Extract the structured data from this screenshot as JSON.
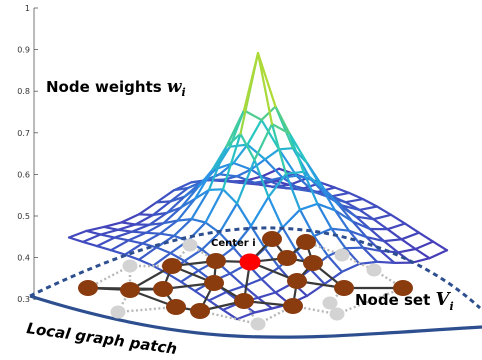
{
  "axis": {
    "ticks": [
      "1",
      "0.9",
      "0.8",
      "0.7",
      "0.6",
      "0.5",
      "0.4",
      "0.3"
    ]
  },
  "labels": {
    "node_weights": "Node weights ",
    "node_weights_symbol": "w",
    "node_weights_sub": "i",
    "node_set": "Node set ",
    "node_set_symbol": "V",
    "node_set_sub": "i",
    "center": "Center i",
    "patch": "Local graph patch"
  },
  "colors": {
    "node_fill": "#8b3c0f",
    "center_fill": "#ff0000",
    "ghost_node": "#d3d3d3",
    "edge_dark": "#3a3a3a",
    "edge_dotted": "#b8b8b8",
    "patch_outline": "#2e4f8f",
    "mesh_low": "#4b2fb0",
    "mesh_high": "#ffe600"
  }
}
